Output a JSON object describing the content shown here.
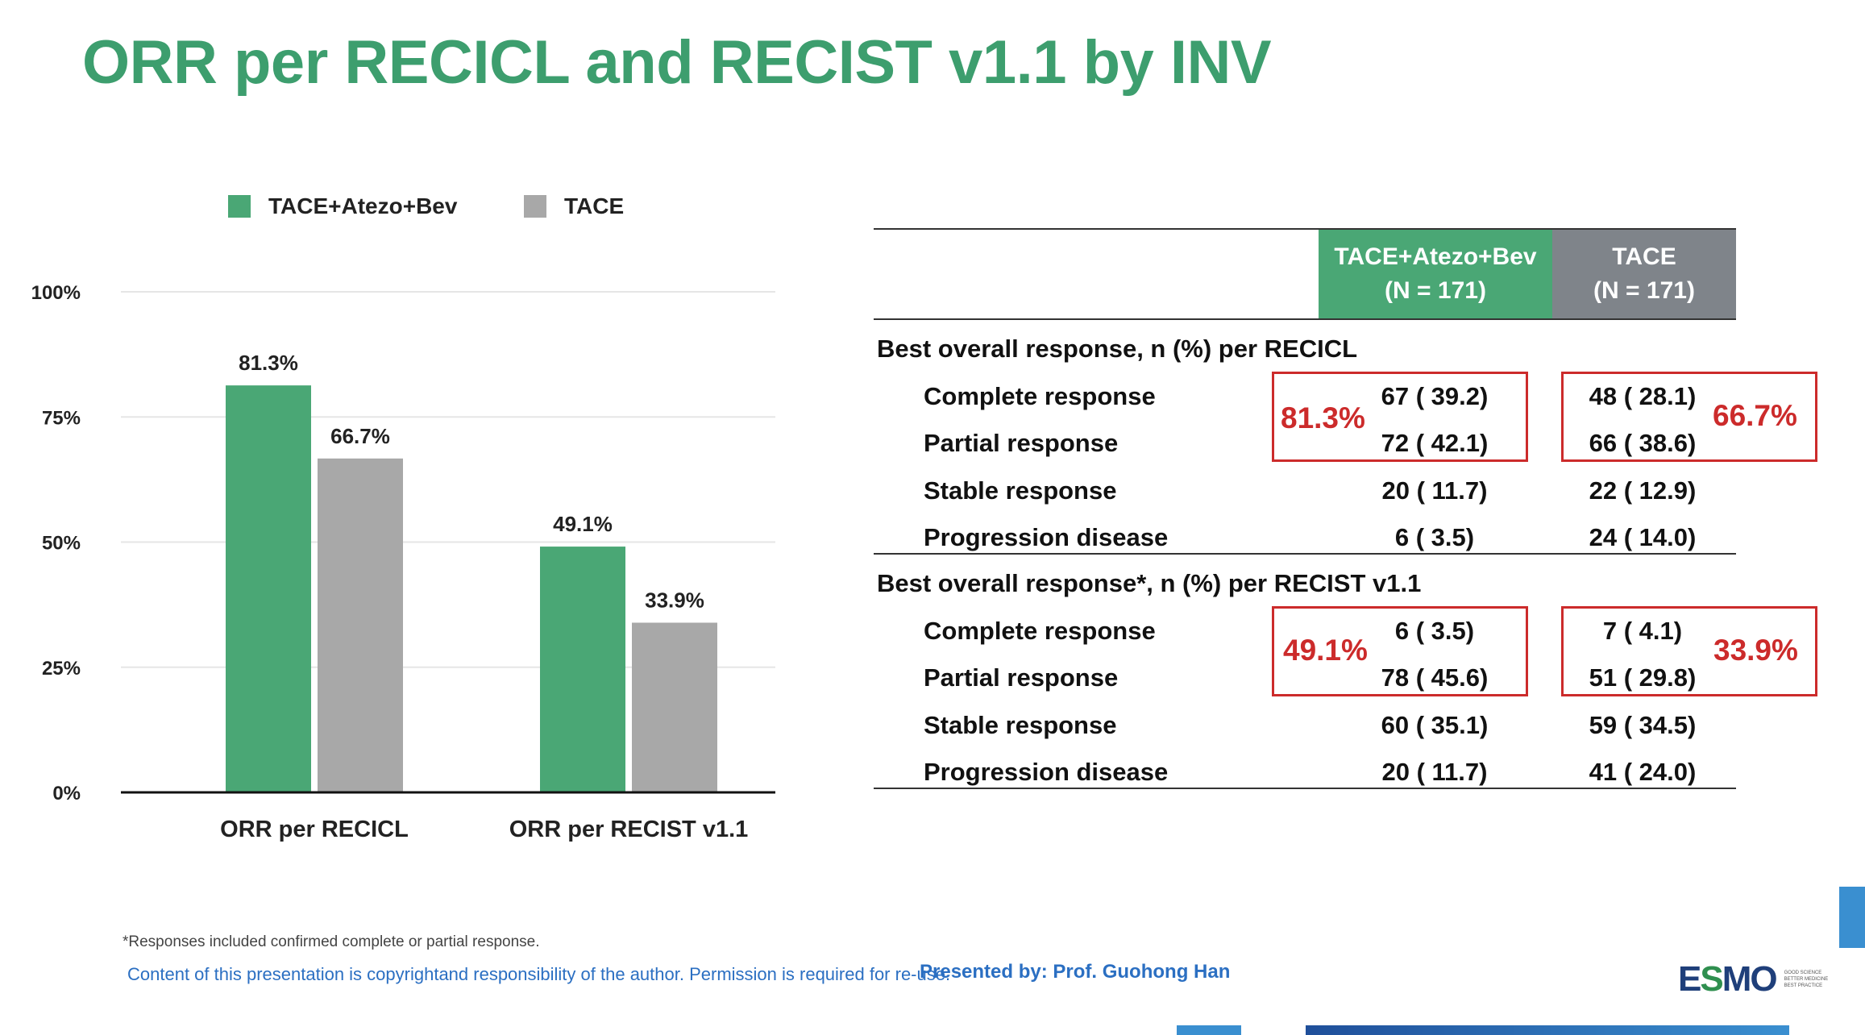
{
  "title": "ORR per RECICL and RECIST v1.1 by INV",
  "colors": {
    "title": "#3d9e6e",
    "green": "#4aa775",
    "gray": "#a8a8a8",
    "red": "#cc2b2b",
    "header_gray": "#7f848a",
    "blue": "#2b6fc2"
  },
  "legend": [
    {
      "label": "TACE+Atezo+Bev",
      "color": "#4aa775"
    },
    {
      "label": "TACE",
      "color": "#a8a8a8"
    }
  ],
  "chart_data": {
    "type": "bar",
    "categories": [
      "ORR per RECICL",
      "ORR per RECIST v1.1"
    ],
    "series": [
      {
        "name": "TACE+Atezo+Bev",
        "values": [
          81.3,
          49.1
        ],
        "labels": [
          "81.3%",
          "49.1%"
        ],
        "color": "#4aa775"
      },
      {
        "name": "TACE",
        "values": [
          66.7,
          33.9
        ],
        "labels": [
          "66.7%",
          "33.9%"
        ],
        "color": "#a8a8a8"
      }
    ],
    "yticks": [
      0,
      25,
      50,
      75,
      100
    ],
    "ytick_labels": [
      "0%",
      "25%",
      "50%",
      "75%",
      "100%"
    ],
    "ylim": [
      0,
      100
    ],
    "grid": true,
    "legend_position": "top"
  },
  "table": {
    "headers": [
      {
        "line1": "TACE+Atezo+Bev",
        "line2": "(N = 171)"
      },
      {
        "line1": "TACE",
        "line2": "(N = 171)"
      }
    ],
    "sections": [
      {
        "title": "Best overall response, n (%) per RECICL",
        "rows": [
          {
            "label": "Complete response",
            "c1": "67 ( 39.2)",
            "c2": "48 ( 28.1)"
          },
          {
            "label": "Partial response",
            "c1": "72 ( 42.1)",
            "c2": "66 ( 38.6)"
          },
          {
            "label": "Stable response",
            "c1": "20 ( 11.7)",
            "c2": "22 ( 12.9)"
          },
          {
            "label": "Progression disease",
            "c1": "6 ( 3.5)",
            "c2": "24 ( 14.0)"
          }
        ],
        "orr": [
          "81.3%",
          "66.7%"
        ]
      },
      {
        "title": "Best overall response*, n (%) per RECIST v1.1",
        "rows": [
          {
            "label": "Complete response",
            "c1": "6 ( 3.5)",
            "c2": "7 ( 4.1)"
          },
          {
            "label": "Partial response",
            "c1": "78 ( 45.6)",
            "c2": "51 ( 29.8)"
          },
          {
            "label": "Stable response",
            "c1": "60 ( 35.1)",
            "c2": "59 ( 34.5)"
          },
          {
            "label": "Progression disease",
            "c1": "20 ( 11.7)",
            "c2": "41 ( 24.0)"
          }
        ],
        "orr": [
          "49.1%",
          "33.9%"
        ]
      }
    ]
  },
  "footer": {
    "footnote": "*Responses included confirmed complete or partial response.",
    "copyright": "Content of this presentation is copyrightand responsibility of the author. Permission is required for re-use.",
    "presenter": "Presented by: Prof. Guohong Han",
    "logo": {
      "word_a": "E",
      "word_b": "S",
      "word_c": "MO",
      "tag1": "GOOD SCIENCE",
      "tag2": "BETTER MEDICINE",
      "tag3": "BEST PRACTICE"
    }
  }
}
